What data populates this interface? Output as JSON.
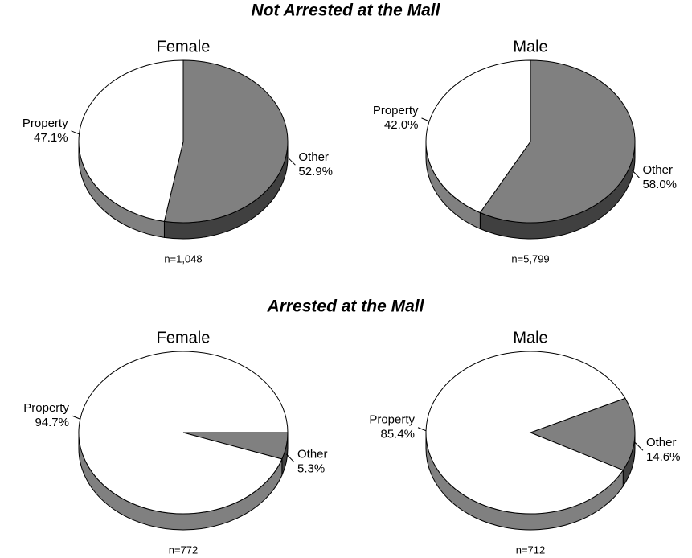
{
  "headings": [
    "Not Arrested at the Mall",
    "Arrested at the Mall"
  ],
  "chart_data": [
    {
      "type": "pie",
      "title": "Female",
      "note": "n=1,048",
      "categories": [
        "Property",
        "Other"
      ],
      "values": [
        47.1,
        52.9
      ],
      "value_labels": [
        "47.1%",
        "52.9%"
      ],
      "colors": [
        "#ffffff",
        "#808080"
      ],
      "start_angle": 0,
      "first_drawn": 1
    },
    {
      "type": "pie",
      "title": "Male",
      "note": "n=5,799",
      "categories": [
        "Property",
        "Other"
      ],
      "values": [
        42.0,
        58.0
      ],
      "value_labels": [
        "42.0%",
        "58.0%"
      ],
      "colors": [
        "#ffffff",
        "#808080"
      ],
      "start_angle": 0,
      "first_drawn": 1
    },
    {
      "type": "pie",
      "title": "Female",
      "note": "n=772",
      "categories": [
        "Property",
        "Other"
      ],
      "values": [
        94.7,
        5.3
      ],
      "value_labels": [
        "94.7%",
        "5.3%"
      ],
      "colors": [
        "#ffffff",
        "#808080"
      ],
      "start_angle": 90,
      "first_drawn": 1
    },
    {
      "type": "pie",
      "title": "Male",
      "note": "n=712",
      "categories": [
        "Property",
        "Other"
      ],
      "values": [
        85.4,
        14.6
      ],
      "value_labels": [
        "85.4%",
        "14.6%"
      ],
      "colors": [
        "#ffffff",
        "#808080"
      ],
      "start_angle": 65,
      "first_drawn": 1
    }
  ]
}
